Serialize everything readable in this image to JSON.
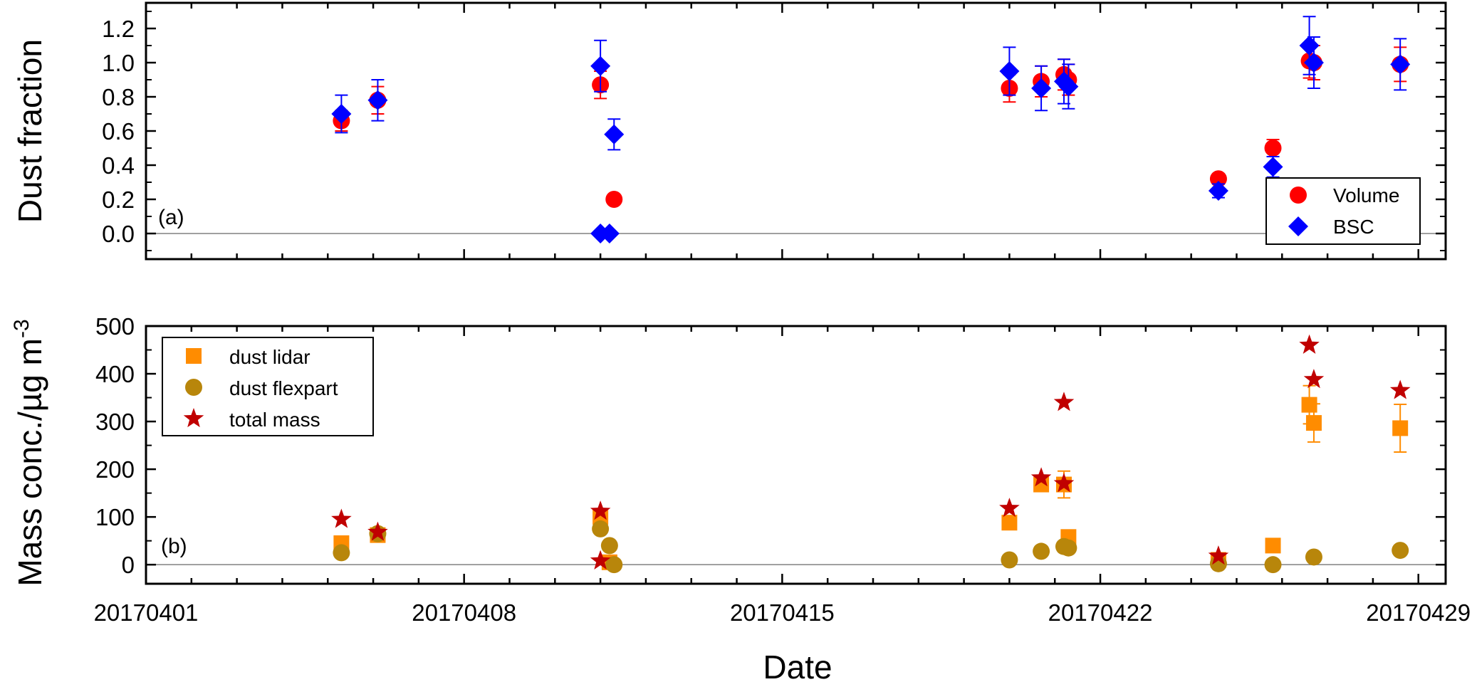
{
  "colors": {
    "volume": "#ff0000",
    "bsc": "#0000ff",
    "dust_lidar": "#ff8c00",
    "dust_flexpart": "#b8860b",
    "total_mass": "#c00000",
    "zero_line": "#808080"
  },
  "chart_data": [
    {
      "type": "scatter",
      "panel_tag": "(a)",
      "ylabel": "Dust fraction",
      "xlim": [
        0,
        28.6
      ],
      "ylim": [
        -0.15,
        1.35
      ],
      "yticks": [
        0.0,
        0.2,
        0.4,
        0.6,
        0.8,
        1.0,
        1.2
      ],
      "tick_labels": [
        "0.0",
        "0.2",
        "0.4",
        "0.6",
        "0.8",
        "1.0",
        "1.2"
      ],
      "zero_line": true,
      "legend_position": "bottom-right",
      "series": [
        {
          "name": "Volume",
          "marker": "circle",
          "points": [
            {
              "x": 4.3,
              "y": 0.66,
              "err": 0.06
            },
            {
              "x": 5.1,
              "y": 0.78,
              "err": 0.08
            },
            {
              "x": 10.0,
              "y": 0.87,
              "err": 0.08
            },
            {
              "x": 10.3,
              "y": 0.2
            },
            {
              "x": 19.0,
              "y": 0.85,
              "err": 0.08
            },
            {
              "x": 19.7,
              "y": 0.89,
              "err": 0.09
            },
            {
              "x": 20.2,
              "y": 0.93,
              "err": 0.09
            },
            {
              "x": 20.3,
              "y": 0.9,
              "err": 0.09
            },
            {
              "x": 23.6,
              "y": 0.32
            },
            {
              "x": 24.8,
              "y": 0.5,
              "err": 0.05
            },
            {
              "x": 25.6,
              "y": 1.01,
              "err": 0.1
            },
            {
              "x": 25.7,
              "y": 1.0,
              "err": 0.1
            },
            {
              "x": 27.6,
              "y": 0.99,
              "err": 0.1
            }
          ]
        },
        {
          "name": "BSC",
          "marker": "diamond",
          "points": [
            {
              "x": 4.3,
              "y": 0.7,
              "err": 0.11
            },
            {
              "x": 5.1,
              "y": 0.78,
              "err": 0.12
            },
            {
              "x": 10.0,
              "y": 0.98,
              "err": 0.15
            },
            {
              "x": 10.3,
              "y": 0.58,
              "err": 0.09
            },
            {
              "x": 10.0,
              "y": 0.0
            },
            {
              "x": 10.2,
              "y": 0.0
            },
            {
              "x": 19.0,
              "y": 0.95,
              "err": 0.14
            },
            {
              "x": 19.7,
              "y": 0.85,
              "err": 0.13
            },
            {
              "x": 20.2,
              "y": 0.89,
              "err": 0.13
            },
            {
              "x": 20.3,
              "y": 0.86,
              "err": 0.13
            },
            {
              "x": 23.6,
              "y": 0.25,
              "err": 0.04
            },
            {
              "x": 24.8,
              "y": 0.39,
              "err": 0.06
            },
            {
              "x": 25.6,
              "y": 1.1,
              "err": 0.17
            },
            {
              "x": 25.7,
              "y": 1.0,
              "err": 0.15
            },
            {
              "x": 27.6,
              "y": 0.99,
              "err": 0.15
            }
          ]
        }
      ]
    },
    {
      "type": "scatter",
      "panel_tag": "(b)",
      "ylabel": "Mass conc./µg m",
      "ylabel_superscript": "-3",
      "xlabel": "Date",
      "xlim": [
        0,
        28.6
      ],
      "ylim": [
        -40,
        500
      ],
      "yticks": [
        0,
        100,
        200,
        300,
        400,
        500
      ],
      "tick_labels": [
        "0",
        "100",
        "200",
        "300",
        "400",
        "500"
      ],
      "zero_line": true,
      "legend_position": "top-left",
      "x_tick_positions": [
        0,
        7,
        14,
        21,
        28
      ],
      "x_tick_labels": [
        "20170401",
        "20170408",
        "20170415",
        "20170422",
        "20170429"
      ],
      "series": [
        {
          "name": "dust lidar",
          "marker": "square",
          "points": [
            {
              "x": 4.3,
              "y": 45
            },
            {
              "x": 5.1,
              "y": 62
            },
            {
              "x": 10.0,
              "y": 100
            },
            {
              "x": 10.2,
              "y": 5
            },
            {
              "x": 19.0,
              "y": 88
            },
            {
              "x": 19.7,
              "y": 168
            },
            {
              "x": 20.2,
              "y": 168,
              "err": 28
            },
            {
              "x": 20.3,
              "y": 58
            },
            {
              "x": 23.6,
              "y": 10
            },
            {
              "x": 24.8,
              "y": 40
            },
            {
              "x": 25.6,
              "y": 335,
              "err": 40
            },
            {
              "x": 25.7,
              "y": 297,
              "err": 40
            },
            {
              "x": 27.6,
              "y": 286,
              "err": 50
            }
          ]
        },
        {
          "name": "dust flexpart",
          "marker": "circle",
          "points": [
            {
              "x": 4.3,
              "y": 25
            },
            {
              "x": 5.1,
              "y": 65
            },
            {
              "x": 10.0,
              "y": 75
            },
            {
              "x": 10.2,
              "y": 40
            },
            {
              "x": 10.3,
              "y": 0
            },
            {
              "x": 19.0,
              "y": 10
            },
            {
              "x": 19.7,
              "y": 28
            },
            {
              "x": 20.2,
              "y": 38
            },
            {
              "x": 20.3,
              "y": 35
            },
            {
              "x": 23.6,
              "y": 2
            },
            {
              "x": 24.8,
              "y": 0
            },
            {
              "x": 25.7,
              "y": 16
            },
            {
              "x": 27.6,
              "y": 30
            }
          ]
        },
        {
          "name": "total mass",
          "marker": "star",
          "points": [
            {
              "x": 4.3,
              "y": 95
            },
            {
              "x": 5.1,
              "y": 68
            },
            {
              "x": 10.0,
              "y": 112
            },
            {
              "x": 10.0,
              "y": 8
            },
            {
              "x": 19.0,
              "y": 118
            },
            {
              "x": 19.7,
              "y": 182
            },
            {
              "x": 20.2,
              "y": 340
            },
            {
              "x": 20.2,
              "y": 170
            },
            {
              "x": 23.6,
              "y": 18
            },
            {
              "x": 25.6,
              "y": 460
            },
            {
              "x": 25.7,
              "y": 388
            },
            {
              "x": 27.6,
              "y": 365
            }
          ]
        }
      ]
    }
  ]
}
